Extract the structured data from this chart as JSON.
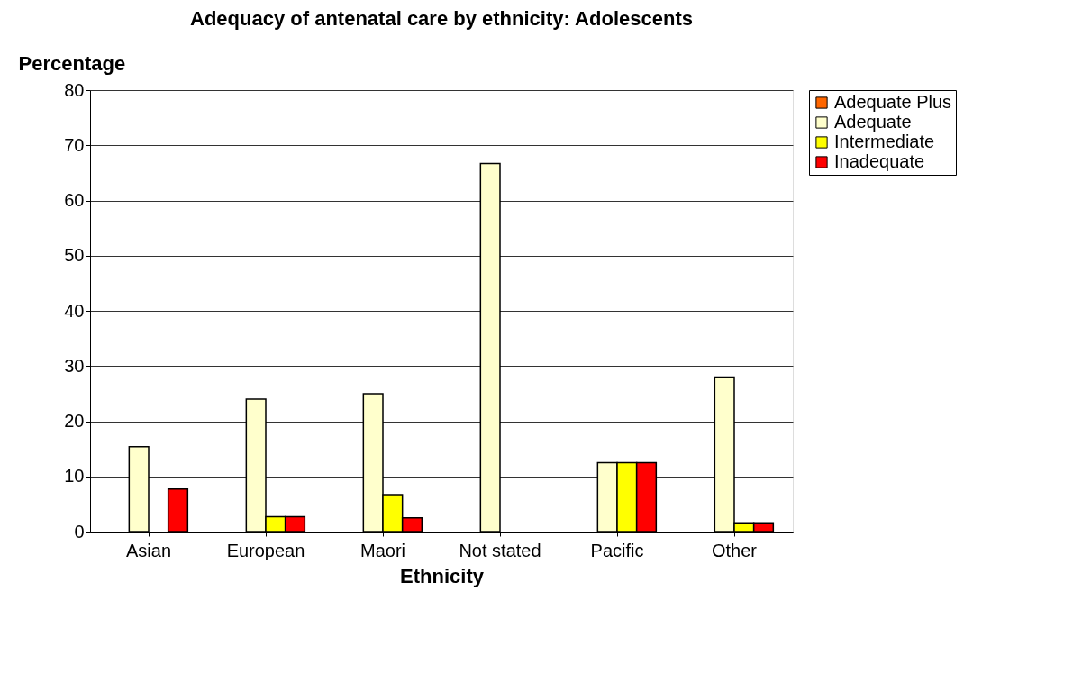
{
  "chart_data": {
    "type": "bar",
    "title": "Adequacy of antenatal care by ethnicity: Adolescents",
    "xlabel": "Ethnicity",
    "ylabel": "Percentage",
    "categories": [
      "Asian",
      "European",
      "Maori",
      "Not stated",
      "Pacific",
      "Other"
    ],
    "series": [
      {
        "name": "Adequate Plus",
        "color": "#ff6600",
        "values": [
          null,
          null,
          null,
          null,
          null,
          null
        ]
      },
      {
        "name": "Adequate",
        "color": "#ffffcc",
        "values": [
          15.4,
          24,
          25,
          66.7,
          12.5,
          28
        ]
      },
      {
        "name": "Intermediate",
        "color": "#ffff00",
        "values": [
          null,
          2.7,
          6.7,
          null,
          12.5,
          1.6
        ]
      },
      {
        "name": "Inadequate",
        "color": "#ff0000",
        "values": [
          7.7,
          2.7,
          2.5,
          null,
          12.5,
          1.6
        ]
      }
    ],
    "ylim": [
      0,
      80
    ],
    "yticks": [
      0,
      10,
      20,
      30,
      40,
      50,
      60,
      70,
      80
    ],
    "grid": "y",
    "legend": "right"
  }
}
